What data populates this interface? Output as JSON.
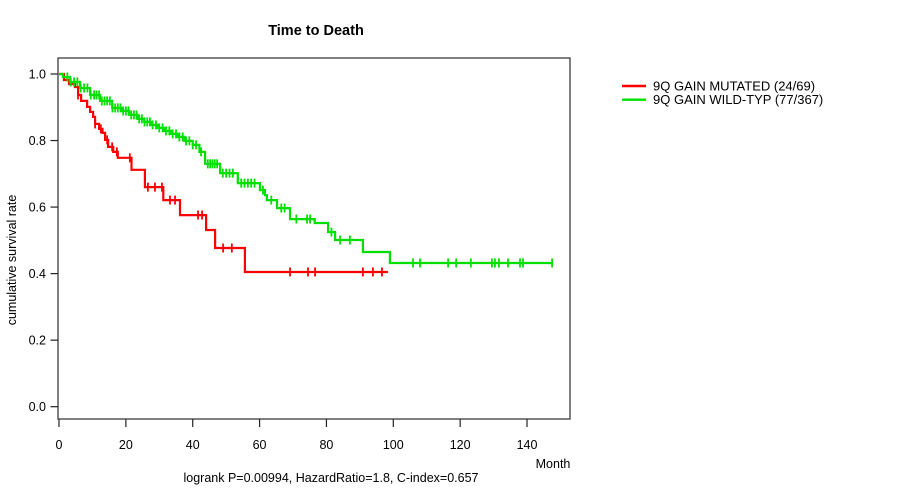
{
  "chart_data": {
    "type": "line",
    "subtype": "kaplan-meier-step-curves",
    "title": "Time to Death",
    "xlabel": "Month",
    "ylabel": "cumulative survival rate",
    "footer": "logrank P=0.00994, HazardRatio=1.8, C-index=0.657",
    "xlim": [
      0,
      152.9
    ],
    "ylim": [
      0.0,
      1.0
    ],
    "xticks": [
      0,
      20,
      40,
      60,
      80,
      100,
      120,
      140
    ],
    "yticks": [
      0.0,
      0.2,
      0.4,
      0.6,
      0.8,
      1.0
    ],
    "grid": false,
    "legend_position": "outside-top-right",
    "background_color": "#FFFFFF",
    "axis_color": "#3C3C3C",
    "series": [
      {
        "name": "9Q GAIN MUTATED (24/69)",
        "color": "#FF0000",
        "end_month": 98.4,
        "steps": [
          [
            0,
            1.0
          ],
          [
            1.5,
            0.982
          ],
          [
            3.0,
            0.97
          ],
          [
            4.8,
            0.961
          ],
          [
            5.7,
            0.937
          ],
          [
            6.6,
            0.919
          ],
          [
            8.4,
            0.901
          ],
          [
            9.3,
            0.886
          ],
          [
            10.2,
            0.871
          ],
          [
            10.8,
            0.85
          ],
          [
            12.0,
            0.835
          ],
          [
            13.0,
            0.823
          ],
          [
            13.8,
            0.802
          ],
          [
            14.7,
            0.781
          ],
          [
            16.2,
            0.766
          ],
          [
            17.6,
            0.748
          ],
          [
            21.7,
            0.712
          ],
          [
            25.7,
            0.66
          ],
          [
            31.2,
            0.621
          ],
          [
            36.2,
            0.576
          ],
          [
            44.0,
            0.531
          ],
          [
            46.7,
            0.477
          ],
          [
            55.6,
            0.405
          ]
        ],
        "censor_months": [
          5.7,
          10.8,
          12.5,
          14.4,
          15.9,
          17.3,
          21.2,
          26.6,
          28.7,
          30.8,
          33.2,
          34.7,
          41.6,
          42.8,
          49.1,
          51.7,
          69.1,
          74.5,
          76.6,
          90.9,
          93.9,
          96.6
        ]
      },
      {
        "name": "9Q GAIN WILD-TYP (77/367)",
        "color": "#00E000",
        "end_month": 147.5,
        "steps": [
          [
            0,
            1.0
          ],
          [
            1.2,
            0.991
          ],
          [
            3.3,
            0.976
          ],
          [
            6.3,
            0.958
          ],
          [
            9.3,
            0.937
          ],
          [
            12.3,
            0.919
          ],
          [
            15.9,
            0.898
          ],
          [
            18.8,
            0.889
          ],
          [
            21.0,
            0.877
          ],
          [
            23.5,
            0.865
          ],
          [
            25.5,
            0.856
          ],
          [
            27.5,
            0.847
          ],
          [
            29.5,
            0.838
          ],
          [
            31.5,
            0.829
          ],
          [
            33.5,
            0.82
          ],
          [
            35.5,
            0.811
          ],
          [
            37.5,
            0.799
          ],
          [
            40.0,
            0.787
          ],
          [
            42.0,
            0.766
          ],
          [
            43.7,
            0.73
          ],
          [
            48.2,
            0.702
          ],
          [
            53.5,
            0.672
          ],
          [
            60.1,
            0.651
          ],
          [
            61.6,
            0.636
          ],
          [
            62.2,
            0.621
          ],
          [
            65.2,
            0.597
          ],
          [
            69.1,
            0.564
          ],
          [
            76.5,
            0.552
          ],
          [
            80.5,
            0.525
          ],
          [
            82.6,
            0.501
          ],
          [
            90.9,
            0.465
          ],
          [
            99.0,
            0.432
          ]
        ],
        "censor_months": [
          2.5,
          3.5,
          4.5,
          5.5,
          6.5,
          7.5,
          8.5,
          9.5,
          10.5,
          11.2,
          12.0,
          12.8,
          13.6,
          14.4,
          15.2,
          16.0,
          16.8,
          17.6,
          18.4,
          19.2,
          20.0,
          20.8,
          21.6,
          22.4,
          23.2,
          24.0,
          24.8,
          25.6,
          26.4,
          27.2,
          28.0,
          29.0,
          30.0,
          31.0,
          32.0,
          33.0,
          34.0,
          35.0,
          36.0,
          37.0,
          38.0,
          39.0,
          40.0,
          41.0,
          42.5,
          44.5,
          45.2,
          45.9,
          46.6,
          47.3,
          49.0,
          50.0,
          51.0,
          52.0,
          54.5,
          55.5,
          56.5,
          57.5,
          58.5,
          61.0,
          63.5,
          66.5,
          67.5,
          71.0,
          74.2,
          75.1,
          81.5,
          84.1,
          87.0,
          105.9,
          108.0,
          116.4,
          118.8,
          123.2,
          129.5,
          130.4,
          131.6,
          134.3,
          137.9,
          138.8,
          147.5
        ]
      }
    ]
  }
}
